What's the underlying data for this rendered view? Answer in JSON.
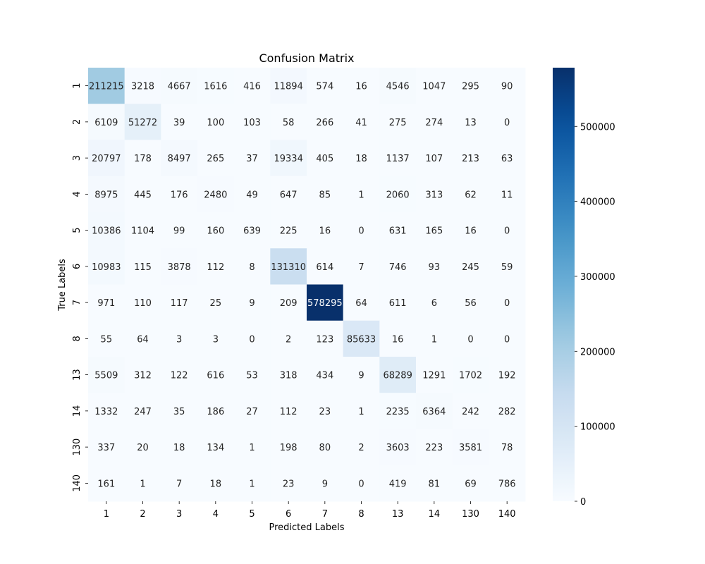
{
  "chart_data": {
    "type": "heatmap",
    "title": "Confusion Matrix",
    "xlabel": "Predicted Labels",
    "ylabel": "True Labels",
    "x_categories": [
      "1",
      "2",
      "3",
      "4",
      "5",
      "6",
      "7",
      "8",
      "13",
      "14",
      "130",
      "140"
    ],
    "y_categories": [
      "1",
      "2",
      "3",
      "4",
      "5",
      "6",
      "7",
      "8",
      "13",
      "14",
      "130",
      "140"
    ],
    "matrix": [
      [
        211215,
        3218,
        4667,
        1616,
        416,
        11894,
        574,
        16,
        4546,
        1047,
        295,
        90
      ],
      [
        6109,
        51272,
        39,
        100,
        103,
        58,
        266,
        41,
        275,
        274,
        13,
        0
      ],
      [
        20797,
        178,
        8497,
        265,
        37,
        19334,
        405,
        18,
        1137,
        107,
        213,
        63
      ],
      [
        8975,
        445,
        176,
        2480,
        49,
        647,
        85,
        1,
        2060,
        313,
        62,
        11
      ],
      [
        10386,
        1104,
        99,
        160,
        639,
        225,
        16,
        0,
        631,
        165,
        16,
        0
      ],
      [
        10983,
        115,
        3878,
        112,
        8,
        131310,
        614,
        7,
        746,
        93,
        245,
        59
      ],
      [
        971,
        110,
        117,
        25,
        9,
        209,
        578295,
        64,
        611,
        6,
        56,
        0
      ],
      [
        55,
        64,
        3,
        3,
        0,
        2,
        123,
        85633,
        16,
        1,
        0,
        0
      ],
      [
        5509,
        312,
        122,
        616,
        53,
        318,
        434,
        9,
        68289,
        1291,
        1702,
        192
      ],
      [
        1332,
        247,
        35,
        186,
        27,
        112,
        23,
        1,
        2235,
        6364,
        242,
        282
      ],
      [
        337,
        20,
        18,
        134,
        1,
        198,
        80,
        2,
        3603,
        223,
        3581,
        78
      ],
      [
        161,
        1,
        7,
        18,
        1,
        23,
        9,
        0,
        419,
        81,
        69,
        786
      ]
    ],
    "colorbar": {
      "min": 0,
      "max": 578295,
      "ticks": [
        0,
        100000,
        200000,
        300000,
        400000,
        500000
      ],
      "colormap": "Blues"
    }
  }
}
